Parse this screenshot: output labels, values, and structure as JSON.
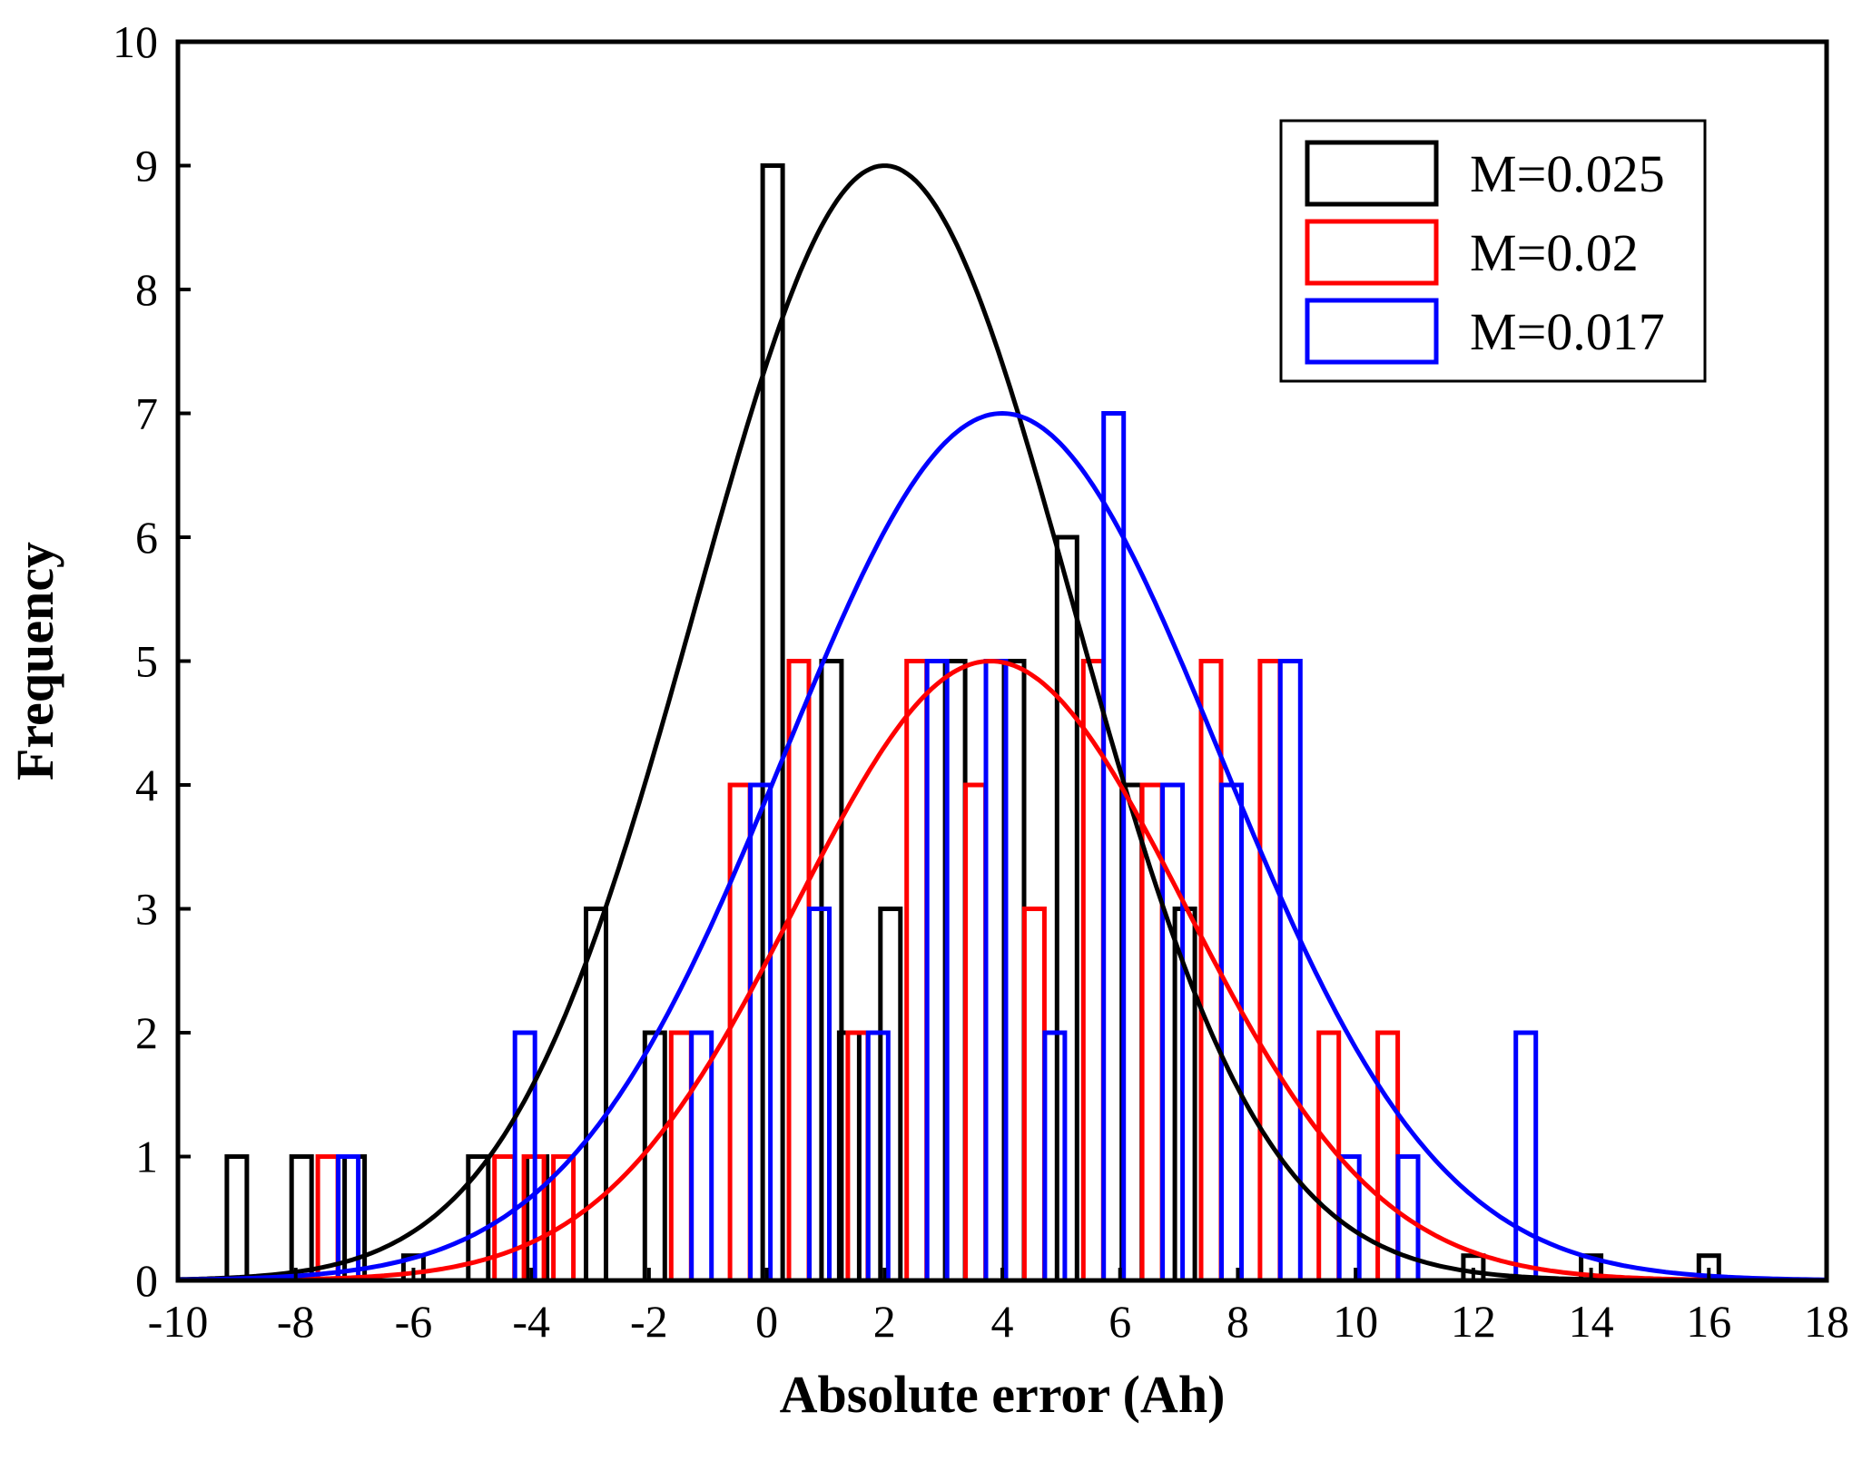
{
  "chart_data": {
    "type": "histogram",
    "xlabel": "Absolute error (Ah)",
    "ylabel": "Frequency",
    "xlim": [
      -10,
      18
    ],
    "ylim": [
      0,
      10
    ],
    "xticks": [
      -10,
      -8,
      -6,
      -4,
      -2,
      0,
      2,
      4,
      6,
      8,
      10,
      12,
      14,
      16,
      18
    ],
    "yticks": [
      0,
      1,
      2,
      3,
      4,
      5,
      6,
      7,
      8,
      9,
      10
    ],
    "bin_width": 0.333,
    "legend_position": "top-right",
    "series": [
      {
        "name": "M=0.025",
        "color": "#000000",
        "offset": 0,
        "fit": {
          "mean": 2.0,
          "sigma": 3.2,
          "peak": 9
        },
        "bins": [
          {
            "x": -9.0,
            "y": 1
          },
          {
            "x": -7.9,
            "y": 1
          },
          {
            "x": -7.0,
            "y": 1
          },
          {
            "x": -6.0,
            "y": 0.2
          },
          {
            "x": -4.9,
            "y": 1
          },
          {
            "x": -3.9,
            "y": 1
          },
          {
            "x": -2.9,
            "y": 3
          },
          {
            "x": -1.9,
            "y": 2
          },
          {
            "x": 0.1,
            "y": 9
          },
          {
            "x": 1.1,
            "y": 5
          },
          {
            "x": 1.4,
            "y": 2
          },
          {
            "x": 2.1,
            "y": 3
          },
          {
            "x": 3.2,
            "y": 5
          },
          {
            "x": 4.2,
            "y": 5
          },
          {
            "x": 5.1,
            "y": 6
          },
          {
            "x": 6.2,
            "y": 4
          },
          {
            "x": 7.1,
            "y": 3
          },
          {
            "x": 12.0,
            "y": 0.2
          },
          {
            "x": 14.0,
            "y": 0.2
          },
          {
            "x": 16.0,
            "y": 0.2
          }
        ]
      },
      {
        "name": "M=0.02",
        "color": "#ff0000",
        "offset": 1,
        "fit": {
          "mean": 3.8,
          "sigma": 3.3,
          "peak": 5
        },
        "bins": [
          {
            "x": -7.5,
            "y": 1
          },
          {
            "x": -4.5,
            "y": 1
          },
          {
            "x": -4.0,
            "y": 1
          },
          {
            "x": -3.5,
            "y": 1
          },
          {
            "x": -1.5,
            "y": 2
          },
          {
            "x": -0.5,
            "y": 4
          },
          {
            "x": 0.5,
            "y": 5
          },
          {
            "x": 1.5,
            "y": 2
          },
          {
            "x": 2.5,
            "y": 5
          },
          {
            "x": 3.5,
            "y": 4
          },
          {
            "x": 4.5,
            "y": 3
          },
          {
            "x": 5.5,
            "y": 5
          },
          {
            "x": 6.5,
            "y": 4
          },
          {
            "x": 7.5,
            "y": 5
          },
          {
            "x": 8.5,
            "y": 5
          },
          {
            "x": 9.5,
            "y": 2
          },
          {
            "x": 10.5,
            "y": 2
          }
        ]
      },
      {
        "name": "M=0.017",
        "color": "#0000ff",
        "offset": 2,
        "fit": {
          "mean": 4.0,
          "sigma": 3.7,
          "peak": 7
        },
        "bins": [
          {
            "x": -7.2,
            "y": 1
          },
          {
            "x": -4.2,
            "y": 2
          },
          {
            "x": -1.2,
            "y": 2
          },
          {
            "x": -0.2,
            "y": 4
          },
          {
            "x": 0.8,
            "y": 3
          },
          {
            "x": 1.8,
            "y": 2
          },
          {
            "x": 2.8,
            "y": 5
          },
          {
            "x": 3.8,
            "y": 5
          },
          {
            "x": 4.8,
            "y": 2
          },
          {
            "x": 5.8,
            "y": 7
          },
          {
            "x": 6.8,
            "y": 4
          },
          {
            "x": 7.8,
            "y": 4
          },
          {
            "x": 8.8,
            "y": 5
          },
          {
            "x": 9.8,
            "y": 1
          },
          {
            "x": 10.8,
            "y": 1
          },
          {
            "x": 12.8,
            "y": 2
          }
        ]
      }
    ]
  }
}
